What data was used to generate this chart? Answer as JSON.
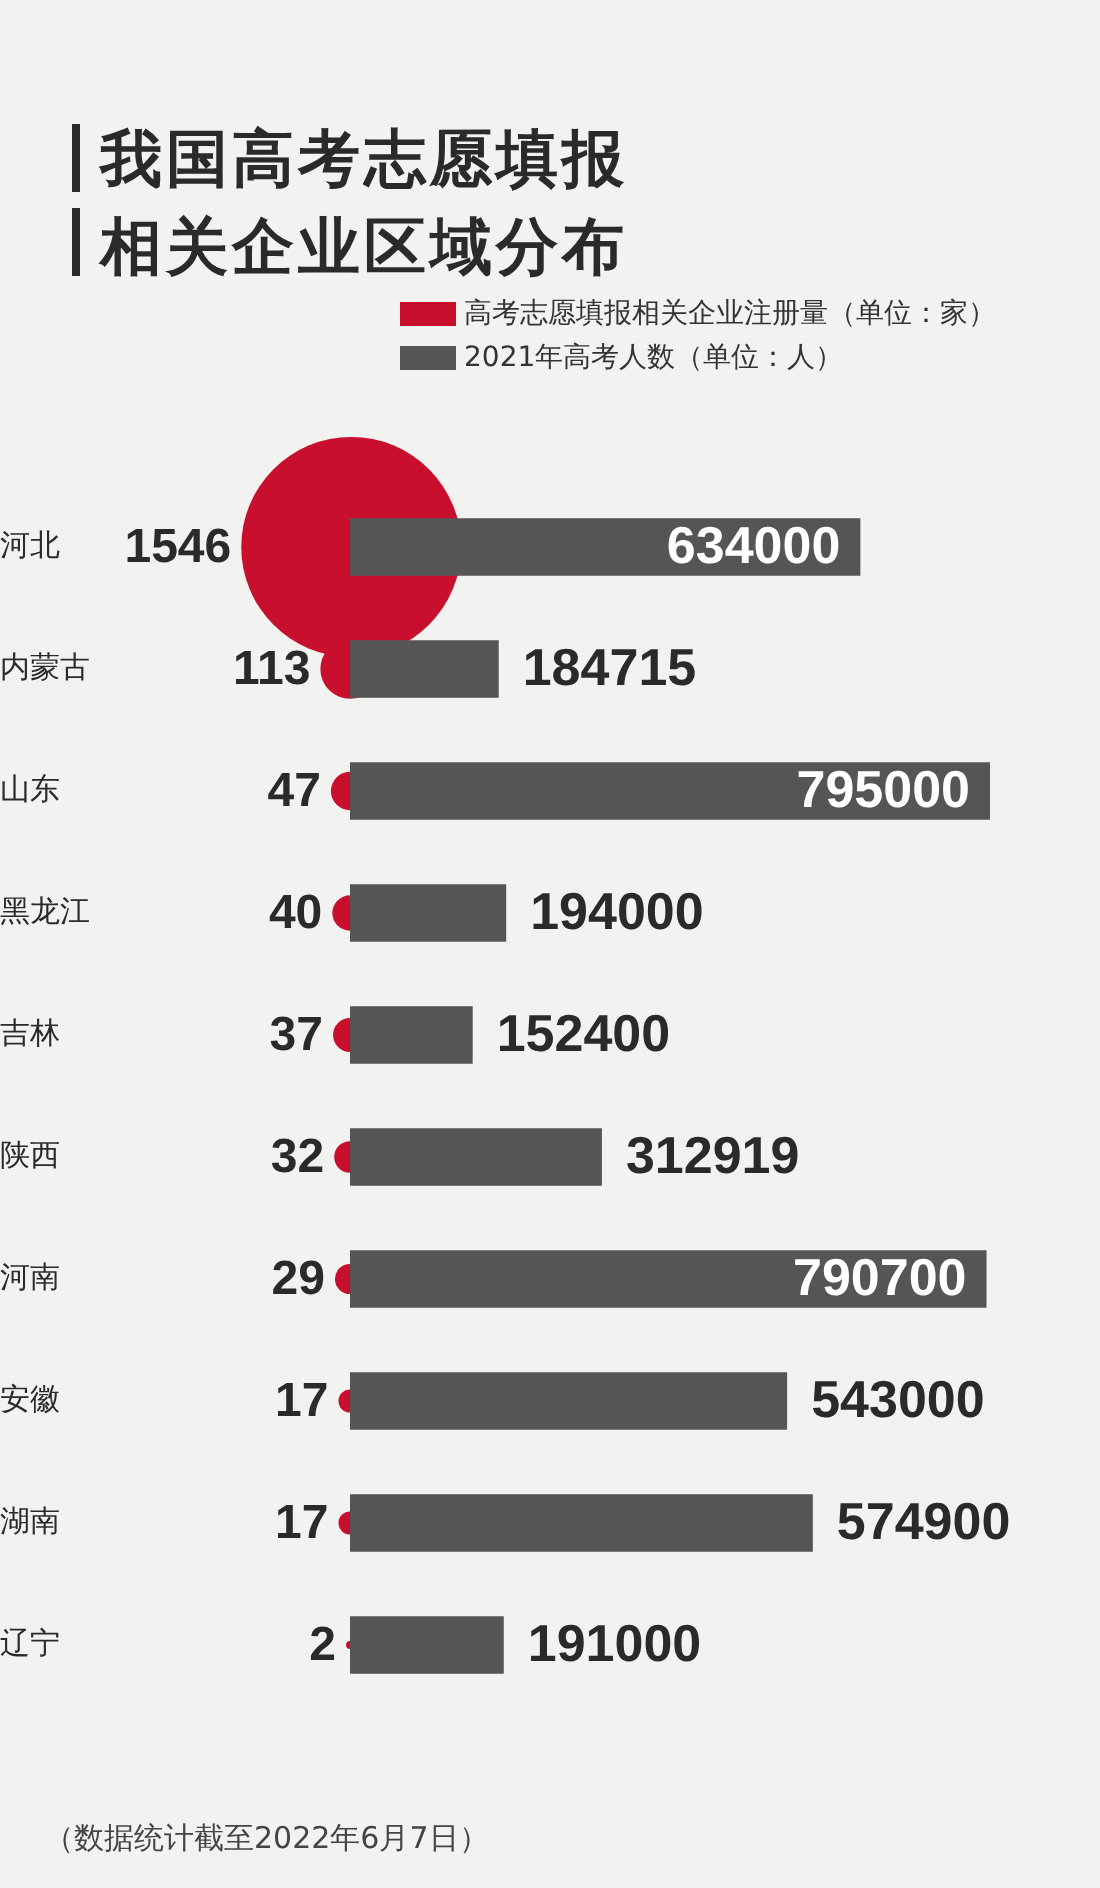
{
  "chart_data": {
    "type": "bar",
    "orientation": "horizontal",
    "title": "我国高考志愿填报相关企业区域分布",
    "categories": [
      "河北",
      "内蒙古",
      "山东",
      "黑龙江",
      "吉林",
      "陕西",
      "河南",
      "安徽",
      "湖南",
      "辽宁"
    ],
    "series": [
      {
        "name": "高考志愿填报相关企业注册量（单位：家）",
        "type": "bubble",
        "color": "#c8102e",
        "values": [
          1546,
          113,
          47,
          40,
          37,
          32,
          29,
          17,
          17,
          2
        ],
        "sizes": [
          1,
          0.0731,
          0.0304,
          0.0259,
          0.0239,
          0.0207,
          0.0188,
          0.011,
          0.011,
          0.0013
        ]
      },
      {
        "name": "2021年高考人数（单位：人）",
        "type": "bar",
        "color": "#555555",
        "values": [
          634000,
          184715,
          795000,
          194000,
          152400,
          312919,
          790700,
          543000,
          574900,
          191000
        ]
      }
    ],
    "data_labels": true,
    "legend": "top right",
    "tick_labels": "y",
    "annotations": [
      "（数据统计截至2022年6月7日）"
    ]
  }
}
